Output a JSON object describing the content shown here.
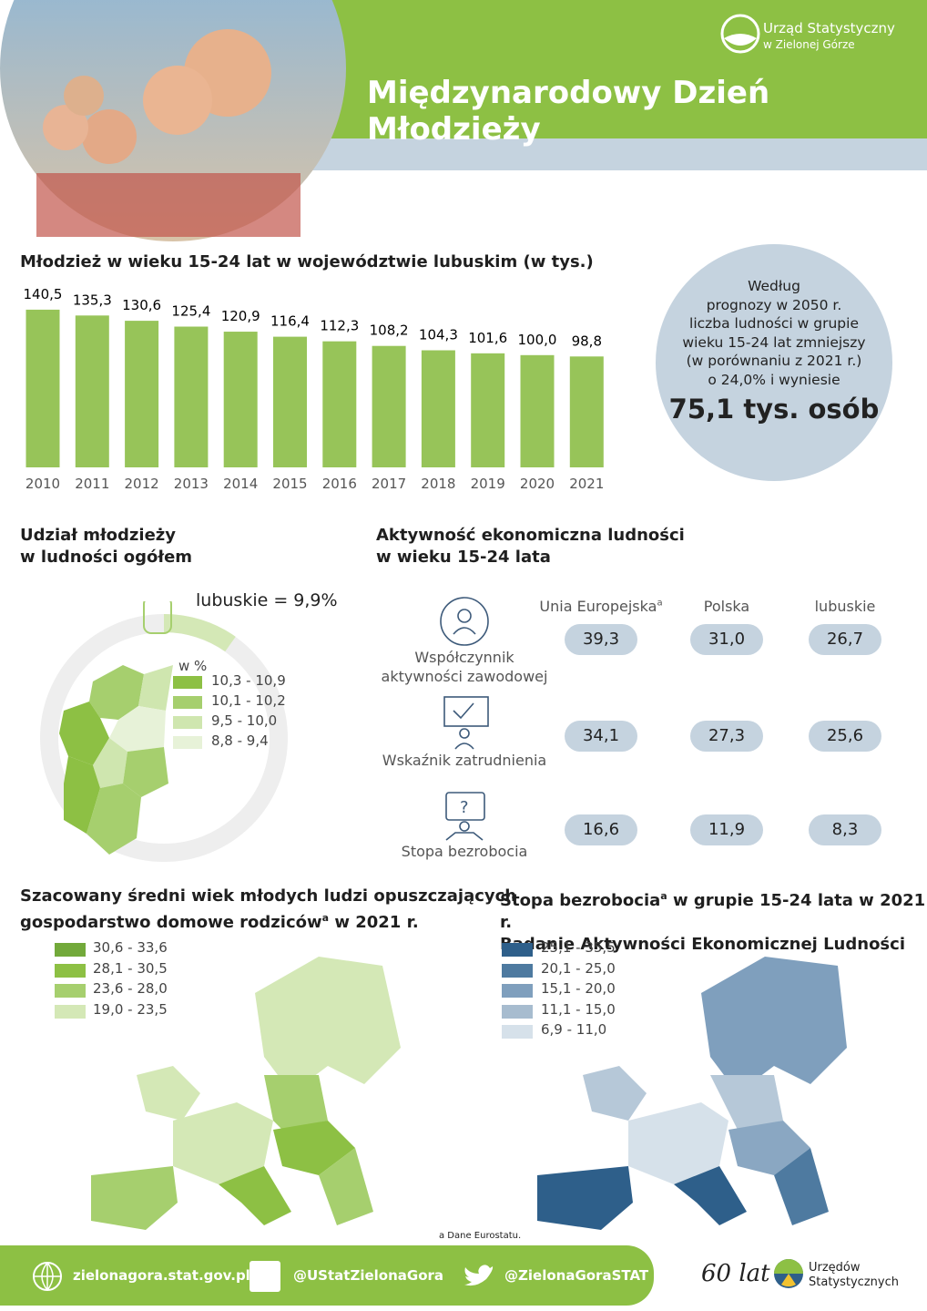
{
  "header": {
    "title": "Międzynarodowy Dzień Młodzieży",
    "logo_line1": "Urząd Statystyczny",
    "logo_line2": "w Zielonej Górze"
  },
  "chart_data": {
    "type": "bar",
    "title": "Młodzież w wieku 15-24 lat w województwie lubuskim  (w tys.)",
    "categories": [
      "2010",
      "2011",
      "2012",
      "2013",
      "2014",
      "2015",
      "2016",
      "2017",
      "2018",
      "2019",
      "2020",
      "2021"
    ],
    "values": [
      140.5,
      135.3,
      130.6,
      125.4,
      120.9,
      116.4,
      112.3,
      108.2,
      104.3,
      101.6,
      100.0,
      98.8
    ],
    "value_labels": [
      "140,5",
      "135,3",
      "130,6",
      "125,4",
      "120,9",
      "116,4",
      "112,3",
      "108,2",
      "104,3",
      "101,6",
      "100,0",
      "98,8"
    ],
    "color": "#97c459"
  },
  "forecast": {
    "lines": [
      "Według",
      "prognozy w 2050 r.",
      "liczba ludności w grupie",
      "wieku 15-24 lat zmniejszy",
      "(w porównaniu z 2021 r.)",
      "o 24,0% i wyniesie"
    ],
    "highlight": "75,1 tys. osób"
  },
  "share": {
    "title": [
      "Udział młodzieży",
      "w ludności ogółem"
    ],
    "value_text": "lubuskie = 9,9%",
    "legend_title": "w %",
    "legend": [
      "10,3 - 10,9",
      "10,1 - 10,2",
      "9,5 - 10,0",
      "8,8 - 9,4"
    ]
  },
  "activity": {
    "title": [
      "Aktywność ekonomiczna ludności",
      "w wieku 15-24 lata"
    ],
    "columns": [
      {
        "text": "Unia Europejska",
        "sup": "a"
      },
      {
        "text": "Polska"
      },
      {
        "text": "lubuskie"
      }
    ],
    "rows": [
      {
        "label": [
          "Współczynnik",
          "aktywności zawodowej"
        ],
        "values": [
          "39,3",
          "31,0",
          "26,7"
        ]
      },
      {
        "label": [
          "Wskaźnik zatrudnienia"
        ],
        "values": [
          "34,1",
          "27,3",
          "25,6"
        ]
      },
      {
        "label": [
          "Stopa bezrobocia"
        ],
        "values": [
          "16,6",
          "11,9",
          "8,3"
        ]
      }
    ]
  },
  "map_age": {
    "title": [
      "Szacowany średni wiek młodych ludzi opuszczających",
      "gospodarstwo domowe rodziców",
      "a",
      " w 2021 r."
    ],
    "legend": [
      "30,6 - 33,6",
      "28,1 - 30,5",
      "23,6 - 28,0",
      "19,0 - 23,5"
    ]
  },
  "map_unemployment": {
    "title": [
      "Stopa bezrobocia",
      "a",
      " w grupie 15-24 lata w 2021 r.",
      "Badanie Aktywności Ekonomicznej Ludności"
    ],
    "legend": [
      "25,1 - 35,5",
      "20,1 - 25,0",
      "15,1 - 20,0",
      "11,1 - 15,0",
      "6,9 - 11,0"
    ]
  },
  "footnote": "a Dane Eurostatu.",
  "footer": {
    "website": "zielonagora.stat.gov.pl",
    "facebook": "@UStatZielonaGora",
    "twitter": "@ZielonaGoraSTAT",
    "anniversary": "60 lat",
    "logo_line1": "Urzędów",
    "logo_line2": "Statystycznych"
  }
}
